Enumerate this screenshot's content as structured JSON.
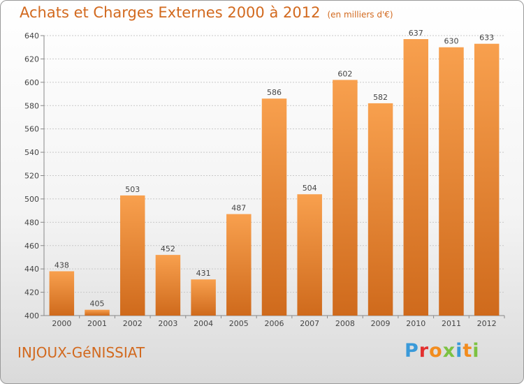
{
  "header": {
    "title": "Achats et Charges Externes 2000 à 2012",
    "unit": "(en milliers d'€)"
  },
  "footer": {
    "town": "INJOUX-GéNISSIAT",
    "brand_letters": [
      "P",
      "r",
      "o",
      "x",
      "i",
      "t",
      "i"
    ],
    "brand_colors": [
      "#3a9ad9",
      "#e3302f",
      "#f28c1e",
      "#7cc242",
      "#3a9ad9",
      "#f28c1e",
      "#7cc242"
    ]
  },
  "chart_data": {
    "type": "bar",
    "categories": [
      "2000",
      "2001",
      "2002",
      "2003",
      "2004",
      "2005",
      "2006",
      "2007",
      "2008",
      "2009",
      "2010",
      "2011",
      "2012"
    ],
    "values": [
      438,
      405,
      503,
      452,
      431,
      487,
      586,
      504,
      602,
      582,
      637,
      630,
      633
    ],
    "ylim": [
      400,
      640
    ],
    "yticks": [
      400,
      420,
      440,
      460,
      480,
      500,
      520,
      540,
      560,
      580,
      600,
      620,
      640
    ],
    "grid": true,
    "bar_color": "#f0923a",
    "bar_color_dark": "#d2691e"
  }
}
